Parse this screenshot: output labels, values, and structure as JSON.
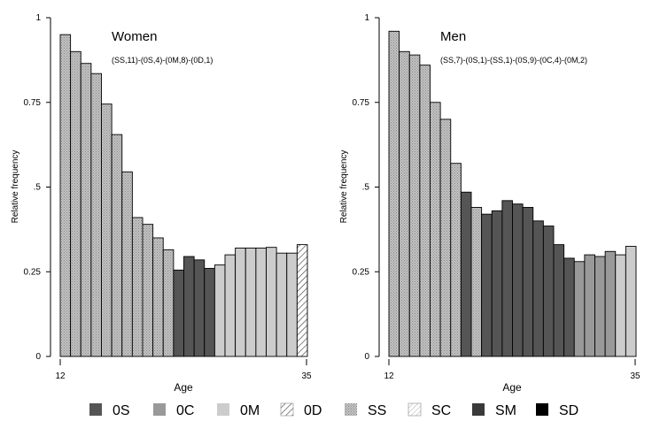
{
  "legend": {
    "items": [
      {
        "key": "0S",
        "label": "0S",
        "color": "#555555",
        "pattern": "solid"
      },
      {
        "key": "0C",
        "label": "0C",
        "color": "#999999",
        "pattern": "solid"
      },
      {
        "key": "0M",
        "label": "0M",
        "color": "#cccccc",
        "pattern": "solid"
      },
      {
        "key": "0D",
        "label": "0D",
        "color": "#ffffff",
        "pattern": "hatch"
      },
      {
        "key": "SS",
        "label": "SS",
        "color": "#b8b8b8",
        "pattern": "dots"
      },
      {
        "key": "SC",
        "label": "SC",
        "color": "#ffffff",
        "pattern": "hatch-light"
      },
      {
        "key": "SM",
        "label": "SM",
        "color": "#3a3a3a",
        "pattern": "solid"
      },
      {
        "key": "SD",
        "label": "SD",
        "color": "#000000",
        "pattern": "solid"
      }
    ]
  },
  "chart_data": [
    {
      "type": "bar",
      "title": "Women",
      "subtitle": "(SS,11)-(0S,4)-(0M,8)-(0D,1)",
      "xlabel": "Age",
      "ylabel": "Relative frequency",
      "ylim": [
        0,
        1
      ],
      "yticks": [
        0,
        0.25,
        0.5,
        0.75,
        1
      ],
      "yticklabels": [
        "0",
        "0.25",
        ".5",
        "0.75",
        "1"
      ],
      "xticklabels": [
        "12",
        "35"
      ],
      "categories": [
        12,
        13,
        14,
        15,
        16,
        17,
        18,
        19,
        20,
        21,
        22,
        23,
        24,
        25,
        26,
        27,
        28,
        29,
        30,
        31,
        32,
        33,
        34,
        35
      ],
      "values": [
        0.95,
        0.9,
        0.865,
        0.835,
        0.745,
        0.655,
        0.545,
        0.41,
        0.39,
        0.35,
        0.315,
        0.255,
        0.295,
        0.285,
        0.26,
        0.27,
        0.3,
        0.32,
        0.32,
        0.32,
        0.322,
        0.305,
        0.305,
        0.33
      ],
      "states": [
        "SS",
        "SS",
        "SS",
        "SS",
        "SS",
        "SS",
        "SS",
        "SS",
        "SS",
        "SS",
        "SS",
        "0S",
        "0S",
        "0S",
        "0S",
        "0M",
        "0M",
        "0M",
        "0M",
        "0M",
        "0M",
        "0M",
        "0M",
        "0D"
      ]
    },
    {
      "type": "bar",
      "title": "Men",
      "subtitle": "(SS,7)-(0S,1)-(SS,1)-(0S,9)-(0C,4)-(0M,2)",
      "xlabel": "Age",
      "ylabel": "Relative frequency",
      "ylim": [
        0,
        1
      ],
      "yticks": [
        0,
        0.25,
        0.5,
        0.75,
        1
      ],
      "yticklabels": [
        "0",
        "0.25",
        ".5",
        "0.75",
        "1"
      ],
      "xticklabels": [
        "12",
        "35"
      ],
      "categories": [
        12,
        13,
        14,
        15,
        16,
        17,
        18,
        19,
        20,
        21,
        22,
        23,
        24,
        25,
        26,
        27,
        28,
        29,
        30,
        31,
        32,
        33,
        34,
        35
      ],
      "values": [
        0.96,
        0.9,
        0.89,
        0.86,
        0.75,
        0.7,
        0.57,
        0.485,
        0.44,
        0.42,
        0.43,
        0.46,
        0.45,
        0.44,
        0.4,
        0.385,
        0.33,
        0.29,
        0.28,
        0.3,
        0.295,
        0.31,
        0.3,
        0.325
      ],
      "states": [
        "SS",
        "SS",
        "SS",
        "SS",
        "SS",
        "SS",
        "SS",
        "0S",
        "SS",
        "0S",
        "0S",
        "0S",
        "0S",
        "0S",
        "0S",
        "0S",
        "0S",
        "0S",
        "0C",
        "0C",
        "0C",
        "0C",
        "0M",
        "0M"
      ]
    }
  ]
}
